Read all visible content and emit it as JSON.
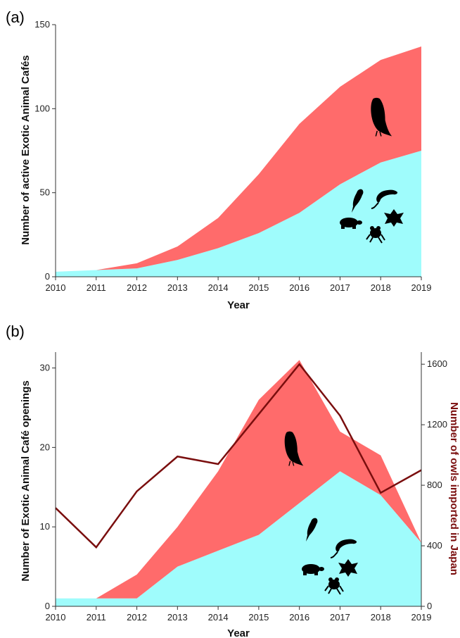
{
  "chart_data": [
    {
      "panel_label": "(a)",
      "type": "area",
      "stacked": true,
      "x": [
        2010,
        2011,
        2012,
        2013,
        2014,
        2015,
        2016,
        2017,
        2018,
        2019
      ],
      "xlabel": "Year",
      "ylabel": "Number of active Exotic Animal Cafés",
      "ylim": [
        0,
        150
      ],
      "yticks": [
        "0",
        "50",
        "100",
        "150"
      ],
      "xticks": [
        "2010",
        "2011",
        "2012",
        "2013",
        "2014",
        "2015",
        "2016",
        "2017",
        "2018",
        "2019"
      ],
      "grid": false,
      "series": [
        {
          "values": [
            3,
            4,
            5,
            10,
            17,
            26,
            38,
            55,
            68,
            75
          ],
          "color": "#9ffcfc",
          "icon": "other-animals-icons"
        },
        {
          "values": [
            0,
            0,
            3,
            8,
            18,
            35,
            53,
            58,
            61,
            62
          ],
          "color": "#ff6b6b",
          "icon": "owl-icon"
        }
      ]
    },
    {
      "panel_label": "(b)",
      "type": "area",
      "stacked": true,
      "x": [
        2010,
        2011,
        2012,
        2013,
        2014,
        2015,
        2016,
        2017,
        2018,
        2019
      ],
      "xlabel": "Year",
      "ylabel": "Number of Exotic Animal Café openings",
      "ylim": [
        0,
        32
      ],
      "yticks": [
        "0",
        "10",
        "20",
        "30"
      ],
      "xticks": [
        "2010",
        "2011",
        "2012",
        "2013",
        "2014",
        "2015",
        "2016",
        "2017",
        "2018",
        "2019"
      ],
      "y2label": "Number of owls imported in Japan",
      "y2lim": [
        0,
        1680
      ],
      "y2ticks": [
        "0",
        "400",
        "800",
        "1200",
        "1600"
      ],
      "grid": false,
      "series": [
        {
          "values": [
            1,
            1,
            1,
            5,
            7,
            9,
            13,
            17,
            14,
            8
          ],
          "color": "#9ffcfc",
          "icon": "other-animals-icons"
        },
        {
          "values": [
            0,
            0,
            3,
            5,
            10,
            17,
            18,
            5,
            5,
            0
          ],
          "color": "#ff6b6b",
          "icon": "owl-icon"
        }
      ],
      "line_series": {
        "axis": "right",
        "color": "#7a0e0e",
        "values": [
          650,
          390,
          760,
          990,
          940,
          1270,
          1600,
          1260,
          750,
          900
        ]
      }
    }
  ]
}
